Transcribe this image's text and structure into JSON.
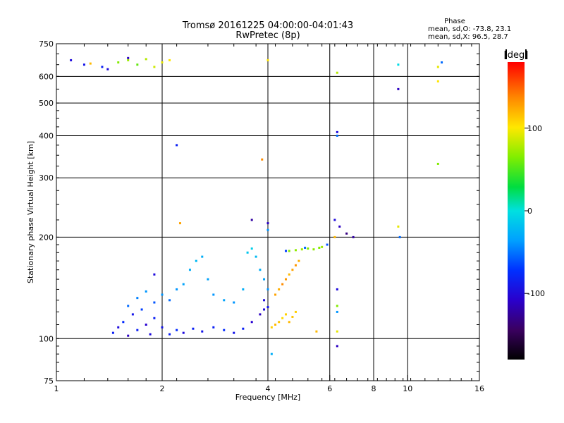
{
  "chart_data": {
    "type": "scatter",
    "title": "Tromsø 20161225 04:00:00-04:01:43",
    "subtitle": "RwPretec (8p)",
    "xlabel": "Frequency [MHz]",
    "ylabel": "Stationary phase Virtual Height [km]",
    "x_scale": "log",
    "y_scale": "log",
    "xlim": [
      1,
      16
    ],
    "ylim": [
      75,
      750
    ],
    "x_ticks": [
      1,
      2,
      4,
      6,
      8,
      10,
      16
    ],
    "x_tick_labels": [
      "1",
      "2",
      "4",
      "6",
      "8",
      "10",
      "16"
    ],
    "y_ticks": [
      75,
      100,
      200,
      300,
      400,
      500,
      600,
      750
    ],
    "y_tick_labels": [
      "75",
      "100",
      "200",
      "300",
      "400",
      "500",
      "600",
      "750"
    ],
    "grid": true,
    "stats": {
      "heading": "Phase",
      "line1": "mean, sd,O: -73.8, 23.1",
      "line2": "mean, sd,X:  96.5, 28.7"
    },
    "colorbar": {
      "label": "[deg]",
      "min": -180,
      "max": 180,
      "ticks": [
        100,
        0,
        -100
      ],
      "tick_labels": [
        "100",
        "0",
        "-100"
      ]
    },
    "colors": {
      "background": "#ffffff",
      "axis": "#000000"
    },
    "series": [
      {
        "points": [
          [
            1.45,
            104,
            -100
          ],
          [
            1.5,
            108,
            -110
          ],
          [
            1.55,
            112,
            -95
          ],
          [
            1.6,
            102,
            -120
          ],
          [
            1.65,
            118,
            -105
          ],
          [
            1.7,
            106,
            -100
          ],
          [
            1.75,
            122,
            -90
          ],
          [
            1.8,
            110,
            -115
          ],
          [
            1.85,
            103,
            -110
          ],
          [
            1.9,
            115,
            -100
          ],
          [
            2.0,
            108,
            -105
          ],
          [
            2.1,
            103,
            -100
          ],
          [
            2.2,
            106,
            -95
          ],
          [
            2.3,
            104,
            -110
          ],
          [
            2.45,
            107,
            -100
          ],
          [
            2.6,
            105,
            -105
          ],
          [
            2.8,
            108,
            -100
          ],
          [
            3.0,
            106,
            -95
          ],
          [
            3.2,
            104,
            -105
          ],
          [
            3.4,
            107,
            -100
          ],
          [
            3.6,
            112,
            -115
          ],
          [
            3.8,
            118,
            -120
          ],
          [
            3.9,
            122,
            -110
          ],
          [
            4.0,
            124,
            -105
          ],
          [
            1.6,
            125,
            -80
          ],
          [
            1.7,
            132,
            -75
          ],
          [
            1.8,
            138,
            -70
          ],
          [
            1.9,
            128,
            -85
          ],
          [
            2.0,
            135,
            -70
          ],
          [
            2.1,
            130,
            -80
          ],
          [
            2.2,
            140,
            -70
          ],
          [
            2.3,
            145,
            -65
          ],
          [
            2.4,
            160,
            -60
          ],
          [
            2.5,
            170,
            -55
          ],
          [
            2.6,
            175,
            -60
          ],
          [
            2.7,
            150,
            -65
          ],
          [
            2.8,
            135,
            -70
          ],
          [
            3.0,
            130,
            -65
          ],
          [
            3.2,
            128,
            -70
          ],
          [
            3.4,
            140,
            -60
          ],
          [
            3.5,
            180,
            -50
          ],
          [
            3.6,
            185,
            -45
          ],
          [
            3.7,
            175,
            -55
          ],
          [
            3.8,
            160,
            -60
          ],
          [
            3.9,
            150,
            -65
          ],
          [
            4.0,
            140,
            -70
          ],
          [
            4.1,
            108,
            100
          ],
          [
            4.2,
            110,
            110
          ],
          [
            4.3,
            112,
            105
          ],
          [
            4.4,
            115,
            95
          ],
          [
            4.5,
            118,
            100
          ],
          [
            4.6,
            112,
            110
          ],
          [
            4.7,
            116,
            105
          ],
          [
            4.8,
            120,
            100
          ],
          [
            4.2,
            135,
            120
          ],
          [
            4.3,
            140,
            115
          ],
          [
            4.4,
            145,
            130
          ],
          [
            4.5,
            150,
            125
          ],
          [
            4.6,
            155,
            110
          ],
          [
            4.7,
            160,
            120
          ],
          [
            4.8,
            165,
            125
          ],
          [
            4.9,
            170,
            115
          ],
          [
            4.6,
            182,
            40
          ],
          [
            4.8,
            183,
            45
          ],
          [
            5.0,
            184,
            50
          ],
          [
            5.2,
            185,
            40
          ],
          [
            5.4,
            184,
            45
          ],
          [
            5.6,
            186,
            40
          ],
          [
            5.7,
            187,
            50
          ],
          [
            4.5,
            182,
            -90
          ],
          [
            5.1,
            186,
            -80
          ],
          [
            5.9,
            190,
            -85
          ],
          [
            6.2,
            225,
            -110
          ],
          [
            6.4,
            215,
            -120
          ],
          [
            6.7,
            205,
            -140
          ],
          [
            7.0,
            200,
            -130
          ],
          [
            1.5,
            660,
            40
          ],
          [
            1.6,
            670,
            50
          ],
          [
            1.7,
            650,
            30
          ],
          [
            1.8,
            675,
            60
          ],
          [
            1.9,
            640,
            70
          ],
          [
            2.0,
            660,
            80
          ],
          [
            2.1,
            670,
            90
          ],
          [
            1.4,
            630,
            -110
          ],
          [
            1.35,
            640,
            -100
          ],
          [
            1.6,
            680,
            -120
          ],
          [
            1.1,
            670,
            -110
          ],
          [
            1.2,
            650,
            -105
          ],
          [
            1.25,
            655,
            110
          ],
          [
            9.4,
            550,
            -120
          ],
          [
            9.4,
            650,
            -40
          ],
          [
            12.2,
            580,
            90
          ],
          [
            12.2,
            640,
            80
          ],
          [
            12.5,
            660,
            -80
          ],
          [
            12.2,
            330,
            40
          ],
          [
            6.3,
            615,
            60
          ],
          [
            6.3,
            410,
            -110
          ],
          [
            6.3,
            400,
            -80
          ],
          [
            2.2,
            375,
            -100
          ],
          [
            3.85,
            340,
            130
          ],
          [
            4.0,
            670,
            90
          ],
          [
            2.25,
            220,
            120
          ],
          [
            3.6,
            225,
            -130
          ],
          [
            4.0,
            220,
            -120
          ],
          [
            4.0,
            210,
            -70
          ],
          [
            9.5,
            200,
            -80
          ],
          [
            9.4,
            215,
            80
          ],
          [
            6.2,
            200,
            110
          ],
          [
            6.3,
            140,
            -110
          ],
          [
            6.3,
            125,
            40
          ],
          [
            6.3,
            120,
            -70
          ],
          [
            6.3,
            105,
            80
          ],
          [
            6.3,
            95,
            -120
          ],
          [
            5.5,
            105,
            110
          ],
          [
            4.1,
            90,
            -60
          ],
          [
            1.9,
            155,
            -110
          ],
          [
            3.9,
            130,
            -110
          ]
        ]
      }
    ]
  }
}
